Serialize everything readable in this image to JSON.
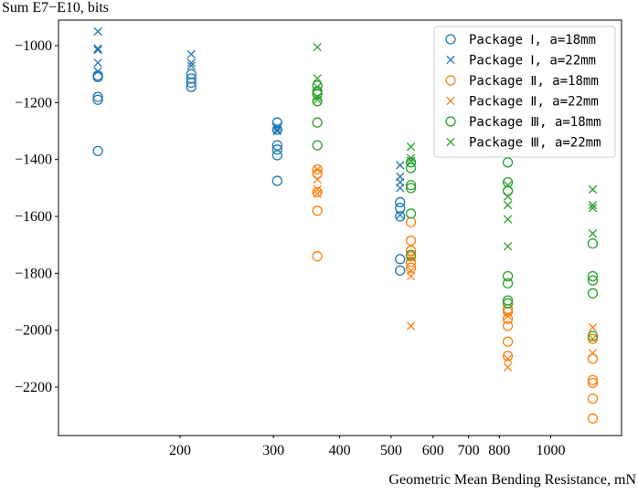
{
  "chart_data": {
    "type": "scatter",
    "title": "",
    "xlabel": "Geometric Mean Bending Resistance, mN",
    "ylabel": "Sum E7−E10, bits",
    "xscale": "log",
    "xlim": [
      118,
      1360
    ],
    "ylim": [
      -2370,
      -910
    ],
    "xticks": [
      200,
      300,
      400,
      500,
      600,
      700,
      800,
      1000
    ],
    "xtick_labels": [
      "200",
      "300",
      "400",
      "500",
      "600",
      "700",
      "800",
      "1000"
    ],
    "yticks": [
      -2200,
      -2000,
      -1800,
      -1600,
      -1400,
      -1200,
      -1000
    ],
    "ytick_labels": [
      "−2200",
      "−2000",
      "−1800",
      "−1600",
      "−1400",
      "−1200",
      "−1000"
    ],
    "grid": false,
    "legend_position": "top-right",
    "colors": {
      "Package I": "#1f77b4",
      "Package II": "#ff7f0e",
      "Package III": "#2ca02c"
    },
    "series": [
      {
        "name": "Package Ⅰ, a=18mm",
        "marker": "circle",
        "color": "#1f77b4",
        "points": [
          [
            140,
            -1105
          ],
          [
            140,
            -1110
          ],
          [
            140,
            -1180
          ],
          [
            140,
            -1190
          ],
          [
            140,
            -1370
          ],
          [
            210,
            -1100
          ],
          [
            210,
            -1115
          ],
          [
            210,
            -1130
          ],
          [
            210,
            -1145
          ],
          [
            305,
            -1270
          ],
          [
            305,
            -1295
          ],
          [
            305,
            -1350
          ],
          [
            305,
            -1365
          ],
          [
            305,
            -1385
          ],
          [
            305,
            -1475
          ],
          [
            520,
            -1550
          ],
          [
            520,
            -1570
          ],
          [
            520,
            -1600
          ],
          [
            520,
            -1750
          ],
          [
            520,
            -1790
          ]
        ]
      },
      {
        "name": "Package Ⅰ, a=22mm",
        "marker": "x",
        "color": "#1f77b4",
        "points": [
          [
            140,
            -950
          ],
          [
            140,
            -1010
          ],
          [
            140,
            -1015
          ],
          [
            140,
            -1060
          ],
          [
            140,
            -1090
          ],
          [
            210,
            -1030
          ],
          [
            210,
            -1060
          ],
          [
            210,
            -1070
          ],
          [
            305,
            -1285
          ],
          [
            305,
            -1295
          ],
          [
            305,
            -1300
          ],
          [
            520,
            -1420
          ],
          [
            520,
            -1460
          ],
          [
            520,
            -1480
          ],
          [
            520,
            -1500
          ],
          [
            520,
            -1595
          ]
        ]
      },
      {
        "name": "Package Ⅱ, a=18mm",
        "marker": "circle",
        "color": "#ff7f0e",
        "points": [
          [
            363,
            -1435
          ],
          [
            363,
            -1450
          ],
          [
            363,
            -1515
          ],
          [
            363,
            -1580
          ],
          [
            363,
            -1740
          ],
          [
            545,
            -1620
          ],
          [
            545,
            -1685
          ],
          [
            545,
            -1720
          ],
          [
            545,
            -1740
          ],
          [
            545,
            -1760
          ],
          [
            545,
            -1780
          ],
          [
            830,
            -1925
          ],
          [
            830,
            -1935
          ],
          [
            830,
            -1960
          ],
          [
            830,
            -1985
          ],
          [
            830,
            -2040
          ],
          [
            830,
            -2090
          ],
          [
            1200,
            -2030
          ],
          [
            1200,
            -2100
          ],
          [
            1200,
            -2175
          ],
          [
            1200,
            -2185
          ],
          [
            1200,
            -2240
          ],
          [
            1200,
            -2310
          ]
        ]
      },
      {
        "name": "Package Ⅱ, a=22mm",
        "marker": "x",
        "color": "#ff7f0e",
        "points": [
          [
            363,
            -1435
          ],
          [
            363,
            -1470
          ],
          [
            363,
            -1505
          ],
          [
            363,
            -1520
          ],
          [
            545,
            -1745
          ],
          [
            545,
            -1790
          ],
          [
            545,
            -1810
          ],
          [
            545,
            -1985
          ],
          [
            830,
            -1950
          ],
          [
            830,
            -2100
          ],
          [
            830,
            -2130
          ],
          [
            1200,
            -1990
          ],
          [
            1200,
            -2030
          ],
          [
            1200,
            -2080
          ]
        ]
      },
      {
        "name": "Package Ⅲ, a=18mm",
        "marker": "circle",
        "color": "#2ca02c",
        "points": [
          [
            363,
            -1140
          ],
          [
            363,
            -1160
          ],
          [
            363,
            -1170
          ],
          [
            363,
            -1195
          ],
          [
            363,
            -1270
          ],
          [
            363,
            -1350
          ],
          [
            545,
            -1410
          ],
          [
            545,
            -1430
          ],
          [
            545,
            -1490
          ],
          [
            545,
            -1500
          ],
          [
            545,
            -1590
          ],
          [
            545,
            -1735
          ],
          [
            830,
            -1410
          ],
          [
            830,
            -1480
          ],
          [
            830,
            -1510
          ],
          [
            830,
            -1810
          ],
          [
            830,
            -1835
          ],
          [
            830,
            -1895
          ],
          [
            830,
            -1905
          ],
          [
            1200,
            -1695
          ],
          [
            1200,
            -1810
          ],
          [
            1200,
            -1825
          ],
          [
            1200,
            -1870
          ],
          [
            1200,
            -2020
          ]
        ]
      },
      {
        "name": "Package Ⅲ, a=22mm",
        "marker": "x",
        "color": "#2ca02c",
        "points": [
          [
            363,
            -1005
          ],
          [
            363,
            -1115
          ],
          [
            363,
            -1145
          ],
          [
            363,
            -1180
          ],
          [
            363,
            -1190
          ],
          [
            545,
            -1355
          ],
          [
            545,
            -1395
          ],
          [
            545,
            -1405
          ],
          [
            830,
            -1490
          ],
          [
            830,
            -1530
          ],
          [
            830,
            -1560
          ],
          [
            830,
            -1610
          ],
          [
            830,
            -1705
          ],
          [
            1200,
            -1505
          ],
          [
            1200,
            -1560
          ],
          [
            1200,
            -1570
          ],
          [
            1200,
            -1660
          ]
        ]
      }
    ]
  }
}
